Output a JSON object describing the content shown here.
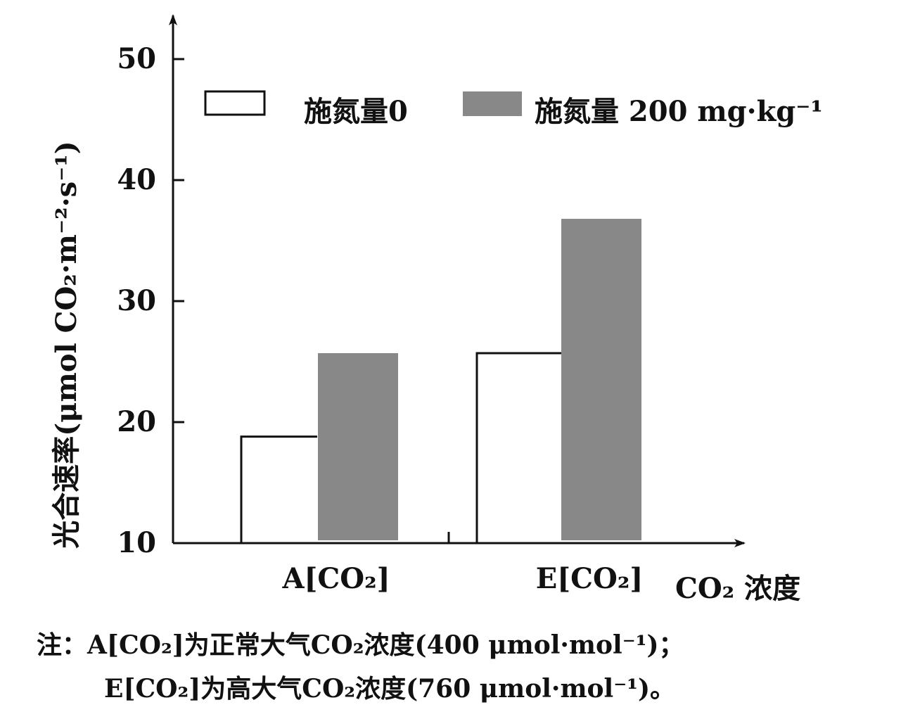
{
  "chart_data": {
    "type": "bar",
    "categories": [
      "A[CO₂]",
      "E[CO₂]"
    ],
    "series": [
      {
        "name": "施氮量0",
        "values": [
          18.8,
          25.7
        ],
        "color": "#ffffff",
        "stroke": "#111111"
      },
      {
        "name": "施氮量 200 mg·kg⁻¹",
        "values": [
          25.7,
          36.8
        ],
        "color": "#888888"
      }
    ],
    "ylabel": "光合速率(μmol CO₂·m⁻²·s⁻¹)",
    "xlabel": "CO₂ 浓度",
    "ylim": [
      10,
      50
    ],
    "yticks": [
      10,
      20,
      30,
      40,
      50
    ],
    "grid": false,
    "legend_position": "top"
  },
  "notes": {
    "line1": "注：A[CO₂]为正常大气CO₂浓度(400 μmol·mol⁻¹)；",
    "line2": "E[CO₂]为高大气CO₂浓度(760 μmol·mol⁻¹)。"
  }
}
